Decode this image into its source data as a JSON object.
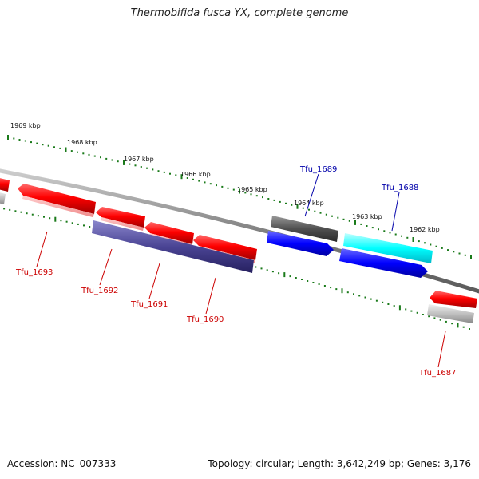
{
  "title": "Thermobifida fusca YX, complete genome",
  "footer": {
    "accession": "Accession: NC_007333",
    "summary": "Topology: circular; Length: 3,642,249 bp; Genes: 3,176"
  },
  "colors": {
    "forward_label": "#0000aa",
    "reverse_label": "#cc0000",
    "tick": "#1a7a1a",
    "backbone": "#808080"
  },
  "kbp_labels": [
    "1969 kbp",
    "1968 kbp",
    "1967 kbp",
    "1966 kbp",
    "1965 kbp",
    "1964 kbp",
    "1963 kbp",
    "1962 kbp"
  ],
  "genes": [
    {
      "name": "Tfu_1689",
      "strand": "forward"
    },
    {
      "name": "Tfu_1688",
      "strand": "forward"
    },
    {
      "name": "Tfu_1693",
      "strand": "reverse"
    },
    {
      "name": "Tfu_1692",
      "strand": "reverse"
    },
    {
      "name": "Tfu_1691",
      "strand": "reverse"
    },
    {
      "name": "Tfu_1690",
      "strand": "reverse"
    },
    {
      "name": "Tfu_1687",
      "strand": "reverse"
    }
  ]
}
